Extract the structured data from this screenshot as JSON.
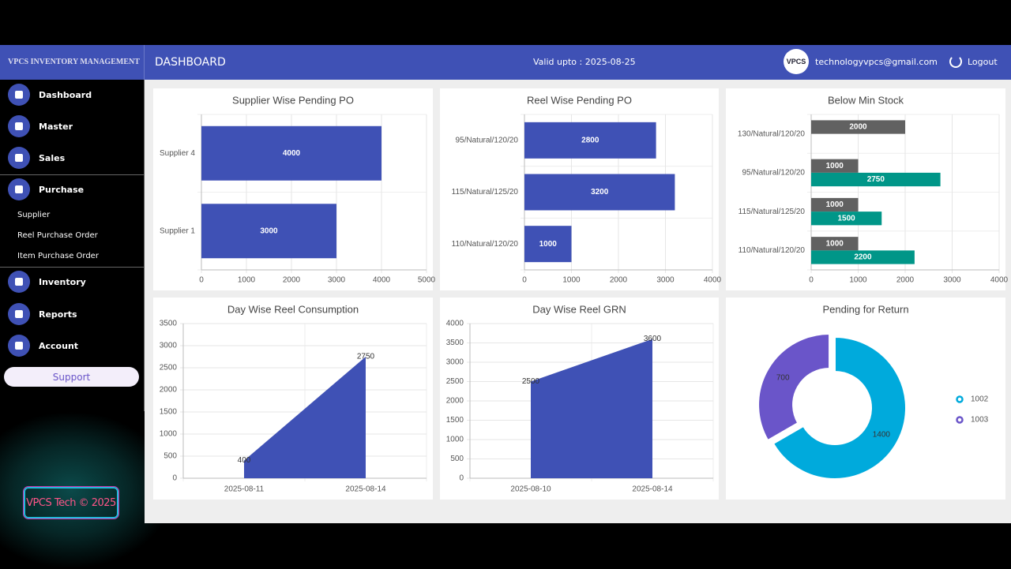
{
  "header": {
    "brand": "VPCS INVENTORY MANAGEMENT",
    "page_title": "DASHBOARD",
    "validity": "Valid upto : 2025-08-25",
    "logo": "VPCS",
    "email": "technologyvpcs@gmail.com",
    "logout": "Logout"
  },
  "sidebar": {
    "items": [
      "Dashboard",
      "Master",
      "Sales",
      "Purchase"
    ],
    "submenu": [
      "Supplier",
      "Reel Purchase Order",
      "Item Purchase Order"
    ],
    "items_after": [
      "Inventory",
      "Reports",
      "Account"
    ],
    "support": "Support",
    "footer": "VPCS Tech © 2025"
  },
  "chart_data": [
    {
      "type": "hbar",
      "title": "Supplier Wise Pending PO",
      "categories": [
        "Supplier 4",
        "Supplier 1"
      ],
      "series": [
        {
          "color": "#3f51b5",
          "values": [
            4000,
            3000
          ]
        }
      ],
      "xlim": [
        0,
        5000
      ],
      "xticks": [
        0,
        1000,
        2000,
        3000,
        4000,
        5000
      ],
      "grid": true
    },
    {
      "type": "hbar",
      "title": "Reel Wise Pending PO",
      "categories": [
        "95/Natural/120/20",
        "115/Natural/125/20",
        "110/Natural/120/20"
      ],
      "series": [
        {
          "color": "#3f51b5",
          "values": [
            2800,
            3200,
            1000
          ]
        }
      ],
      "xlim": [
        0,
        4000
      ],
      "xticks": [
        0,
        1000,
        2000,
        3000,
        4000
      ],
      "grid": true
    },
    {
      "type": "hbar",
      "title": "Below Min Stock",
      "categories": [
        "130/Natural/120/20",
        "95/Natural/120/20",
        "115/Natural/125/20",
        "110/Natural/120/20"
      ],
      "series": [
        {
          "color": "#616161",
          "values": [
            2000,
            1000,
            1000,
            1000
          ]
        },
        {
          "color": "#009688",
          "values": [
            null,
            2750,
            1500,
            2200
          ]
        }
      ],
      "xlim": [
        0,
        4000
      ],
      "xticks": [
        0,
        1000,
        2000,
        3000,
        4000
      ],
      "grid": true
    },
    {
      "type": "area",
      "title": "Day Wise Reel Consumption",
      "categories": [
        "2025-08-11",
        "2025-08-14"
      ],
      "values": [
        400,
        2750
      ],
      "color": "#3f51b5",
      "ylim": [
        0,
        3500
      ],
      "yticks": [
        0,
        500,
        1000,
        1500,
        2000,
        2500,
        3000,
        3500
      ],
      "grid": true
    },
    {
      "type": "area",
      "title": "Day Wise Reel GRN",
      "categories": [
        "2025-08-10",
        "2025-08-14"
      ],
      "values": [
        2500,
        3600
      ],
      "color": "#3f51b5",
      "ylim": [
        0,
        4000
      ],
      "yticks": [
        0,
        500,
        1000,
        1500,
        2000,
        2500,
        3000,
        3500,
        4000
      ],
      "grid": true
    },
    {
      "type": "donut",
      "title": "Pending for Return",
      "categories": [
        "1002",
        "1003"
      ],
      "values": [
        1400,
        700
      ],
      "colors": [
        "#00aadc",
        "#6a55c9"
      ]
    }
  ]
}
